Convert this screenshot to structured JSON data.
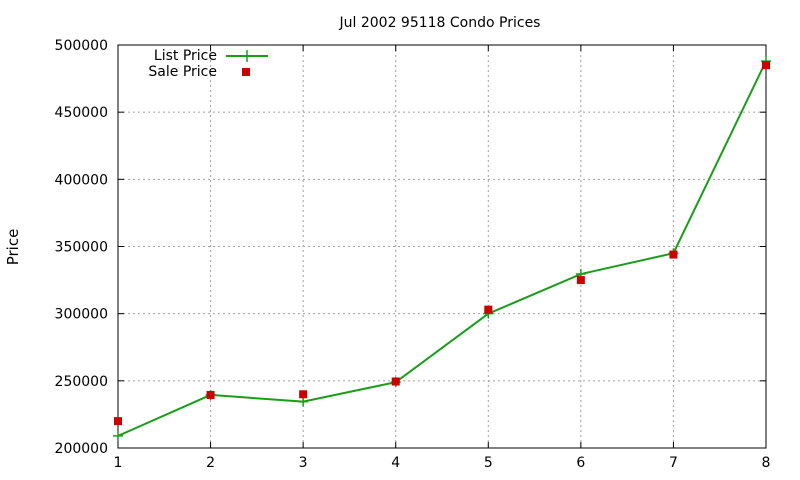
{
  "chart_data": {
    "type": "line",
    "title": "Jul 2002 95118 Condo Prices",
    "xlabel": "",
    "ylabel": "Price",
    "x": [
      1,
      2,
      3,
      4,
      5,
      6,
      7,
      8
    ],
    "xlim": [
      1,
      8
    ],
    "ylim": [
      200000,
      500000
    ],
    "xticks": [
      "1",
      "2",
      "3",
      "4",
      "5",
      "6",
      "7",
      "8"
    ],
    "yticks": [
      "200000",
      "250000",
      "300000",
      "350000",
      "400000",
      "450000",
      "500000"
    ],
    "grid": true,
    "legend_position": "top-left",
    "series": [
      {
        "name": "List Price",
        "style": "line-with-plus-markers",
        "color": "#1a9e1a",
        "values": [
          209000,
          239500,
          234500,
          249000,
          300000,
          329500,
          345000,
          488000
        ]
      },
      {
        "name": "Sale Price",
        "style": "square-markers",
        "color": "#cc0000",
        "values": [
          220000,
          239500,
          240000,
          249500,
          303000,
          325000,
          344000,
          485000
        ]
      }
    ]
  }
}
